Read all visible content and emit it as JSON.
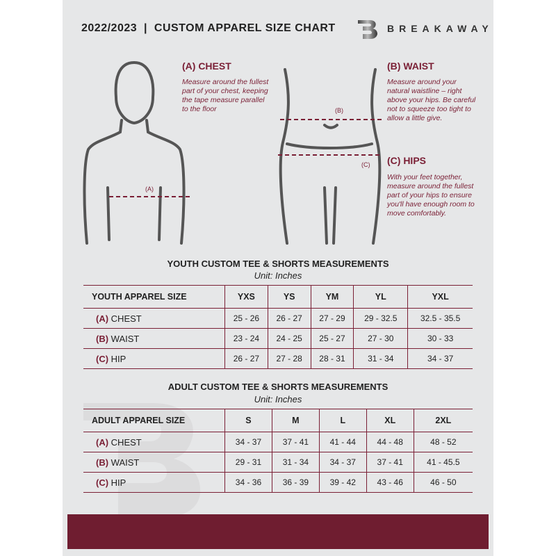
{
  "header": {
    "title": "2022/2023  |  CUSTOM APPAREL SIZE CHART",
    "brand": "BREAKAWAY",
    "logo_letter": "B"
  },
  "accent_color": "#7a1f35",
  "guide": {
    "chest": {
      "heading": "(A) CHEST",
      "marker": "(A)",
      "text": "Measure around the fullest part of your chest, keeping the tape measure parallel to the floor"
    },
    "waist": {
      "heading": "(B) WAIST",
      "marker": "(B)",
      "text": "Measure around your natural waistline – right above your hips. Be careful not to squeeze too tight to allow a little give."
    },
    "hips": {
      "heading": "(C) HIPS",
      "marker": "(C)",
      "text": "With your feet together, measure around the fullest part of your hips to ensure you'll have enough room to move comfortably."
    }
  },
  "youth": {
    "title": "YOUTH CUSTOM TEE & SHORTS MEASUREMENTS",
    "unit": "Unit: Inches",
    "header": [
      "YOUTH APPAREL SIZE",
      "YXS",
      "YS",
      "YM",
      "YL",
      "YXL"
    ],
    "rows": [
      {
        "code": "(A)",
        "name": "CHEST",
        "values": [
          "25 - 26",
          "26 - 27",
          "27 - 29",
          "29 - 32.5",
          "32.5 - 35.5"
        ]
      },
      {
        "code": "(B)",
        "name": "WAIST",
        "values": [
          "23 - 24",
          "24 - 25",
          "25 - 27",
          "27 - 30",
          "30 - 33"
        ]
      },
      {
        "code": "(C)",
        "name": "HIP",
        "values": [
          "26 - 27",
          "27 - 28",
          "28 - 31",
          "31 - 34",
          "34 - 37"
        ]
      }
    ]
  },
  "adult": {
    "title": "ADULT CUSTOM TEE & SHORTS MEASUREMENTS",
    "unit": "Unit: Inches",
    "header": [
      "ADULT APPAREL SIZE",
      "S",
      "M",
      "L",
      "XL",
      "2XL"
    ],
    "rows": [
      {
        "code": "(A)",
        "name": "CHEST",
        "values": [
          "34 - 37",
          "37 - 41",
          "41 - 44",
          "44 - 48",
          "48 - 52"
        ]
      },
      {
        "code": "(B)",
        "name": "WAIST",
        "values": [
          "29 - 31",
          "31 - 34",
          "34 - 37",
          "37 - 41",
          "41 - 45.5"
        ]
      },
      {
        "code": "(C)",
        "name": "HIP",
        "values": [
          "34 - 36",
          "36 - 39",
          "39 - 42",
          "43 - 46",
          "46 - 50"
        ]
      }
    ]
  }
}
